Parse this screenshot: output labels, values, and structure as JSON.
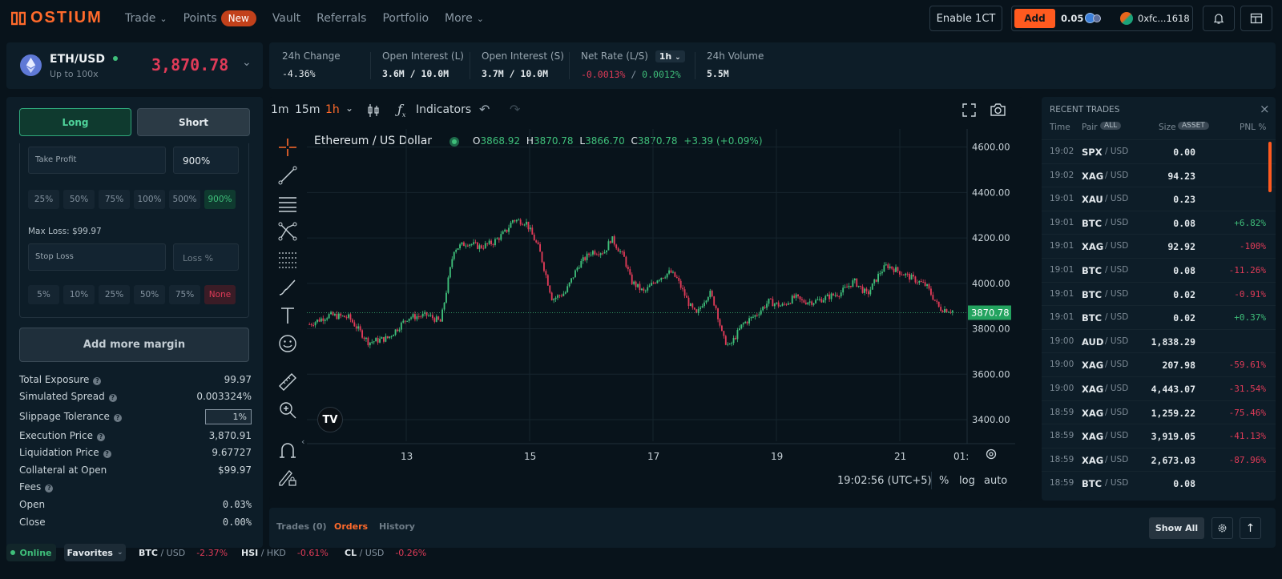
{
  "brand": {
    "name": "OSTIUM"
  },
  "nav": [
    {
      "label": "Trade",
      "chevron": true
    },
    {
      "label": "Points",
      "badge": "New"
    },
    {
      "label": "Vault"
    },
    {
      "label": "Referrals"
    },
    {
      "label": "Portfolio"
    },
    {
      "label": "More",
      "chevron": true
    }
  ],
  "topright": {
    "enable_label": "Enable 1CT",
    "add_label": "Add",
    "balance": "0.05",
    "address": "0xfc...1618"
  },
  "asset": {
    "pair": "ETH/USD",
    "leverage": "Up to 100x",
    "price": "3,870.78"
  },
  "stats": [
    {
      "label": "24h Change",
      "value": "-4.36%",
      "color": "red"
    },
    {
      "label": "Open Interest (L)",
      "value": "3.6M / 10.0M"
    },
    {
      "label": "Open Interest (S)",
      "value": "3.7M / 10.0M"
    },
    {
      "label": "Net Rate (L/S)",
      "pill": "1h",
      "value_a": "-0.0013%",
      "sep": " / ",
      "value_b": "0.0012%"
    },
    {
      "label": "24h Volume",
      "value": "5.5M"
    }
  ],
  "order": {
    "long_label": "Long",
    "short_label": "Short",
    "take_profit_label": "Take Profit",
    "take_profit_value": "900%",
    "tp_options": [
      "25%",
      "50%",
      "75%",
      "100%",
      "500%",
      "900%"
    ],
    "max_loss": "Max Loss: $99.97",
    "stop_loss_label": "Stop Loss",
    "stop_loss_placeholder": "Loss %",
    "sl_options": [
      "5%",
      "10%",
      "25%",
      "50%",
      "75%",
      "None"
    ],
    "add_margin_label": "Add more margin",
    "details": [
      {
        "label": "Total Exposure",
        "value": "99.97",
        "info": true
      },
      {
        "label": "Simulated Spread",
        "value": "0.003324%",
        "info": true
      },
      {
        "label": "Slippage Tolerance",
        "value": "1%",
        "info": true,
        "input": true
      },
      {
        "label": "Execution Price",
        "value": "3,870.91",
        "info": true
      },
      {
        "label": "Liquidation Price",
        "value": "9.67727",
        "info": true
      },
      {
        "label": "Collateral at Open",
        "value": "$99.97"
      },
      {
        "label": "Fees",
        "value": "",
        "info": true
      },
      {
        "label": "Open",
        "value": "0.03%"
      },
      {
        "label": "Close",
        "value": "0.00%"
      }
    ]
  },
  "chart_toolbar": {
    "timeframes": [
      "1m",
      "15m",
      "1h"
    ],
    "active_tf": "1h",
    "indicators_label": "Indicators"
  },
  "chart_data": {
    "type": "candlestick",
    "title": "Ethereum / US Dollar",
    "ohlc_readout": {
      "O": "3868.92",
      "H": "3870.78",
      "L": "3866.70",
      "C": "3870.78",
      "change": "+3.39 (+0.09%)"
    },
    "y_ticks": [
      "4600.00",
      "4400.00",
      "4200.00",
      "4000.00",
      "3800.00",
      "3600.00",
      "3400.00"
    ],
    "y_values": [
      4600,
      4400,
      4200,
      4000,
      3800,
      3600,
      3400
    ],
    "ylim": [
      3340,
      4680
    ],
    "x_ticks": [
      "13",
      "15",
      "17",
      "19",
      "21",
      "01:"
    ],
    "last_price": "3870.78",
    "last_value": 3870.78,
    "path": [
      [
        0,
        3820
      ],
      [
        3,
        3860
      ],
      [
        6,
        3850
      ],
      [
        9,
        3740
      ],
      [
        12,
        3760
      ],
      [
        15,
        3850
      ],
      [
        18,
        3860
      ],
      [
        20,
        3830
      ],
      [
        22,
        4150
      ],
      [
        24,
        4180
      ],
      [
        26,
        4160
      ],
      [
        28,
        4180
      ],
      [
        30,
        4230
      ],
      [
        31,
        4280
      ],
      [
        33,
        4270
      ],
      [
        35,
        4150
      ],
      [
        36,
        4040
      ],
      [
        37,
        3930
      ],
      [
        39,
        3960
      ],
      [
        41,
        4080
      ],
      [
        43,
        4140
      ],
      [
        45,
        4140
      ],
      [
        46,
        4200
      ],
      [
        48,
        4110
      ],
      [
        49,
        4010
      ],
      [
        51,
        3960
      ],
      [
        53,
        4020
      ],
      [
        55,
        4050
      ],
      [
        56,
        4020
      ],
      [
        58,
        3900
      ],
      [
        59,
        3860
      ],
      [
        60,
        3920
      ],
      [
        61,
        3960
      ],
      [
        62,
        3890
      ],
      [
        63,
        3760
      ],
      [
        64,
        3720
      ],
      [
        66,
        3820
      ],
      [
        68,
        3860
      ],
      [
        70,
        3920
      ],
      [
        72,
        3900
      ],
      [
        74,
        3940
      ],
      [
        75,
        3920
      ],
      [
        77,
        3920
      ],
      [
        79,
        3940
      ],
      [
        81,
        3960
      ],
      [
        83,
        4010
      ],
      [
        85,
        3950
      ],
      [
        87,
        4050
      ],
      [
        88,
        4080
      ],
      [
        90,
        4050
      ],
      [
        92,
        4020
      ],
      [
        94,
        3990
      ],
      [
        96,
        3890
      ],
      [
        98,
        3880
      ]
    ],
    "axis_time": "19:02:56 (UTC+5)",
    "axis_opts": [
      "%",
      "log",
      "auto"
    ]
  },
  "recent_trades": {
    "title": "RECENT TRADES",
    "headers": {
      "time": "Time",
      "pair": "Pair",
      "pair_filter": "ALL",
      "size": "Size",
      "size_unit": "ASSET",
      "pnl": "PNL %"
    },
    "rows": [
      {
        "time": "19:02",
        "base": "SPX",
        "quote": "/ USD",
        "size": "0.00",
        "pnl": ""
      },
      {
        "time": "19:02",
        "base": "XAG",
        "quote": "/ USD",
        "size": "94.23",
        "pnl": ""
      },
      {
        "time": "19:01",
        "base": "XAU",
        "quote": "/ USD",
        "size": "0.23",
        "pnl": ""
      },
      {
        "time": "19:01",
        "base": "BTC",
        "quote": "/ USD",
        "size": "0.08",
        "pnl": "+6.82%"
      },
      {
        "time": "19:01",
        "base": "XAG",
        "quote": "/ USD",
        "size": "92.92",
        "pnl": "-100%"
      },
      {
        "time": "19:01",
        "base": "BTC",
        "quote": "/ USD",
        "size": "0.08",
        "pnl": "-11.26%"
      },
      {
        "time": "19:01",
        "base": "BTC",
        "quote": "/ USD",
        "size": "0.02",
        "pnl": "-0.91%"
      },
      {
        "time": "19:01",
        "base": "BTC",
        "quote": "/ USD",
        "size": "0.02",
        "pnl": "+0.37%"
      },
      {
        "time": "19:00",
        "base": "AUD",
        "quote": "/ USD",
        "size": "1,838.29",
        "pnl": ""
      },
      {
        "time": "19:00",
        "base": "XAG",
        "quote": "/ USD",
        "size": "207.98",
        "pnl": "-59.61%"
      },
      {
        "time": "19:00",
        "base": "XAG",
        "quote": "/ USD",
        "size": "4,443.07",
        "pnl": "-31.54%"
      },
      {
        "time": "18:59",
        "base": "XAG",
        "quote": "/ USD",
        "size": "1,259.22",
        "pnl": "-75.46%"
      },
      {
        "time": "18:59",
        "base": "XAG",
        "quote": "/ USD",
        "size": "3,919.05",
        "pnl": "-41.13%"
      },
      {
        "time": "18:59",
        "base": "XAG",
        "quote": "/ USD",
        "size": "2,673.03",
        "pnl": "-87.96%"
      },
      {
        "time": "18:59",
        "base": "BTC",
        "quote": "/ USD",
        "size": "0.08",
        "pnl": ""
      }
    ]
  },
  "bottom": {
    "tabs": [
      "Trades (0)",
      "Orders",
      "History"
    ],
    "active_tab": "Orders",
    "show_all_label": "Show All"
  },
  "footer": {
    "status": "Online",
    "favorites_label": "Favorites",
    "tickers": [
      {
        "base": "BTC",
        "quote": "/ USD",
        "change": "-2.37%"
      },
      {
        "base": "HSI",
        "quote": "/ HKD",
        "change": "-0.61%"
      },
      {
        "base": "CL",
        "quote": "/ USD",
        "change": "-0.26%"
      }
    ]
  },
  "colors": {
    "accent": "#ff6a2b",
    "up": "#3fbf7a",
    "down": "#e03b58",
    "bg": "#08131b",
    "panel": "#0d1d28"
  }
}
